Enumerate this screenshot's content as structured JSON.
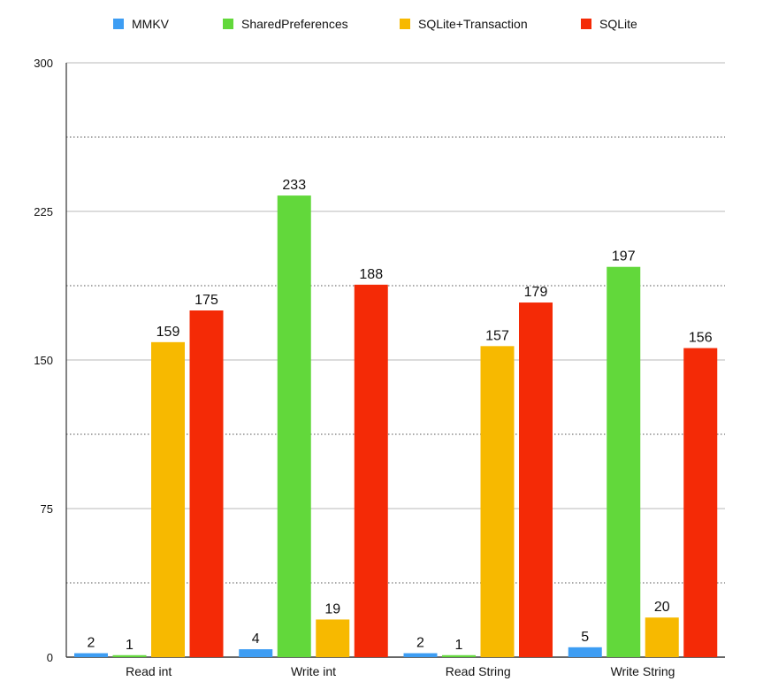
{
  "chart_data": {
    "type": "bar",
    "title": "",
    "xlabel": "",
    "ylabel": "",
    "categories": [
      "Read int",
      "Write int",
      "Read String",
      "Write String"
    ],
    "series": [
      {
        "name": "MMKV",
        "color": "#3d9df3",
        "values": [
          2,
          4,
          2,
          5
        ]
      },
      {
        "name": "SharedPreferences",
        "color": "#62d83b",
        "values": [
          1,
          233,
          1,
          197
        ]
      },
      {
        "name": "SQLite+Transaction",
        "color": "#f7b900",
        "values": [
          159,
          19,
          157,
          20
        ]
      },
      {
        "name": "SQLite",
        "color": "#f42a06",
        "values": [
          175,
          188,
          179,
          156
        ]
      }
    ],
    "ylim": [
      0,
      300
    ],
    "yticks": [
      0,
      75,
      150,
      225,
      300
    ],
    "minor_gridlines": [
      37.5,
      112.5,
      187.5,
      262.5
    ],
    "grid": true,
    "legend_position": "top"
  }
}
